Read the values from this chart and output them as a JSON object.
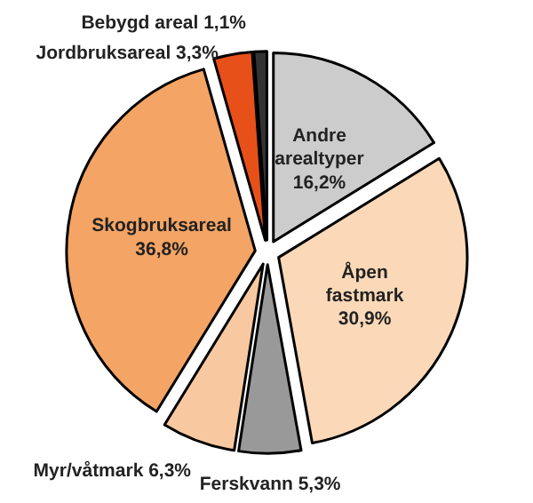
{
  "chart_data": {
    "type": "pie",
    "categories": [
      "Andre arealtyper",
      "Åpen fastmark",
      "Ferskvann",
      "Myr/våtmark",
      "Skogbruksareal",
      "Jordbruksareal",
      "Bebygd areal"
    ],
    "values": [
      16.2,
      30.9,
      5.3,
      6.3,
      36.8,
      3.3,
      1.1
    ],
    "value_labels": [
      "16,2%",
      "30,9%",
      "5,3%",
      "6,3%",
      "36,8%",
      "3,3%",
      "1,1%"
    ],
    "colors": [
      "#cccccc",
      "#fbd9b8",
      "#999999",
      "#f8c9a0",
      "#f4a464",
      "#e8501a",
      "#333333"
    ]
  }
}
